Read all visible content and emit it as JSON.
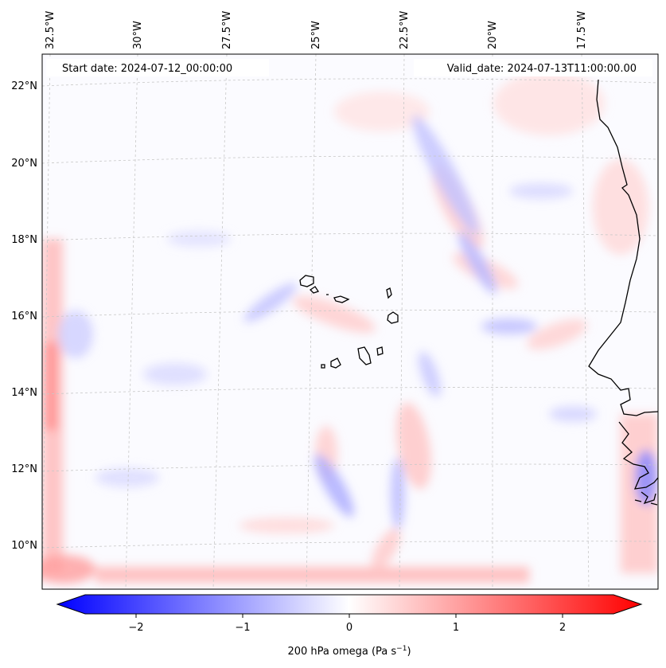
{
  "map": {
    "start_date": "Start date: 2024-07-12_00:00:00",
    "valid_date": "Valid_date: 2024-07-13T11:00:00.00",
    "lon_labels": [
      "32.5°W",
      "30°W",
      "27.5°W",
      "25°W",
      "22.5°W",
      "20°W",
      "17.5°W"
    ],
    "lat_labels": [
      "22°N",
      "20°N",
      "18°N",
      "16°N",
      "14°N",
      "12°N",
      "10°N"
    ]
  },
  "colorbar": {
    "ticks": [
      "−2",
      "−1",
      "0",
      "1",
      "2"
    ],
    "label_main": "200 hPa omega (Pa s",
    "label_sup": "−1",
    "label_end": ")",
    "min_color": "#0000ff",
    "mid_color": "#ffffff",
    "max_color": "#ff0000"
  },
  "colors": {
    "coast": "#000000",
    "grid": "#c8c8c8"
  }
}
